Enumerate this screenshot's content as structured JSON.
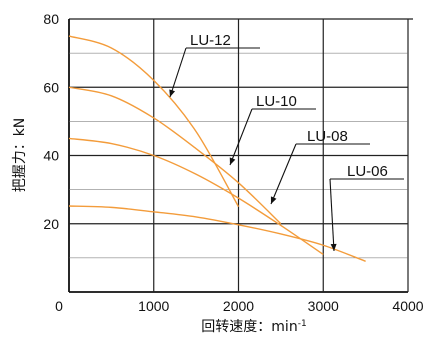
{
  "chart_data": {
    "type": "line",
    "title": "",
    "xlabel": "回转速度：min",
    "xlabel_sup": "-1",
    "ylabel": "把握力：kN",
    "xlim": [
      0,
      4000
    ],
    "ylim": [
      0,
      80
    ],
    "x_ticks": [
      0,
      1000,
      2000,
      3000,
      4000
    ],
    "y_ticks": [
      20,
      40,
      60,
      80
    ],
    "major_grid_x": [
      1000,
      2000,
      3000
    ],
    "major_grid_y": [
      20,
      40,
      60
    ],
    "minor_grid_y": [
      10,
      30,
      50,
      70
    ],
    "grid": true,
    "legend": "none",
    "line_color": "#f39c3b",
    "series": [
      {
        "name": "LU-12",
        "points": [
          [
            0,
            75
          ],
          [
            500,
            71.5
          ],
          [
            1000,
            62
          ],
          [
            1500,
            47
          ],
          [
            2000,
            25
          ]
        ]
      },
      {
        "name": "LU-10",
        "points": [
          [
            0,
            60
          ],
          [
            500,
            57.5
          ],
          [
            1000,
            51
          ],
          [
            1500,
            42
          ],
          [
            2000,
            32
          ],
          [
            2500,
            20
          ]
        ]
      },
      {
        "name": "LU-08",
        "points": [
          [
            0,
            45
          ],
          [
            500,
            43.5
          ],
          [
            1000,
            40
          ],
          [
            1500,
            34.5
          ],
          [
            2000,
            27.5
          ],
          [
            2500,
            19.5
          ],
          [
            3000,
            11
          ]
        ]
      },
      {
        "name": "LU-06",
        "points": [
          [
            0,
            25.2
          ],
          [
            500,
            24.8
          ],
          [
            1000,
            23.5
          ],
          [
            1500,
            22
          ],
          [
            2000,
            19.7
          ],
          [
            2500,
            17
          ],
          [
            3000,
            13.7
          ],
          [
            3500,
            9
          ]
        ]
      }
    ]
  }
}
